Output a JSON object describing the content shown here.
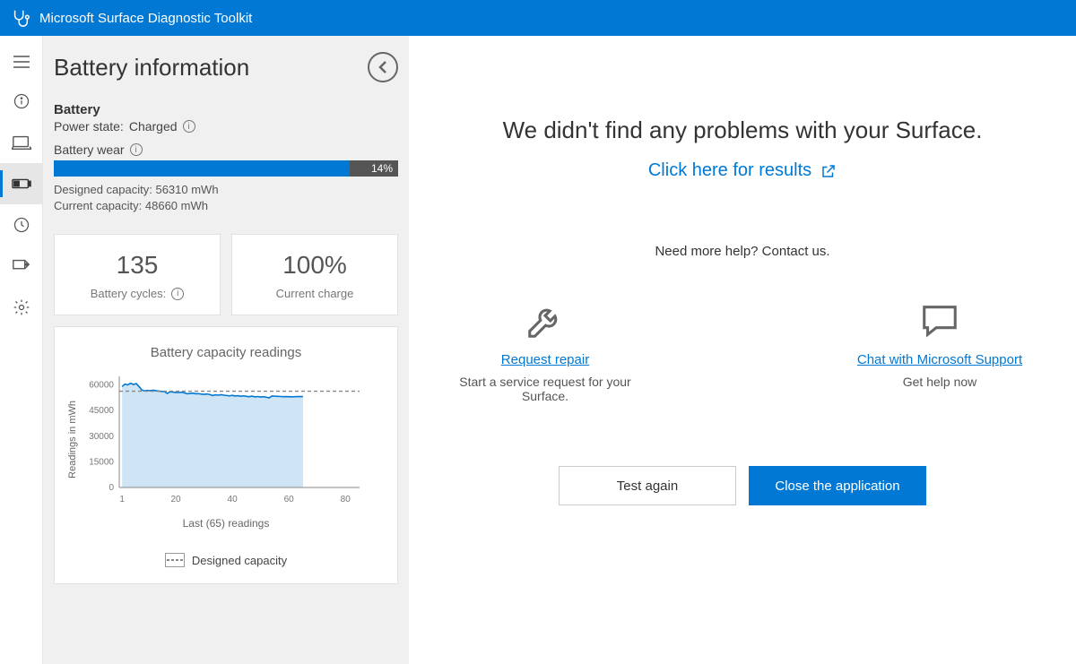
{
  "app_title": "Microsoft Surface Diagnostic Toolkit",
  "page_title": "Battery information",
  "battery": {
    "section_title": "Battery",
    "power_state_label": "Power state:",
    "power_state_value": "Charged",
    "wear_label": "Battery wear",
    "wear_percent": 14,
    "wear_percent_text": "14%",
    "designed_capacity_label": "Designed capacity:",
    "designed_capacity_value": "56310  mWh",
    "current_capacity_label": "Current capacity:",
    "current_capacity_value": "48660  mWh"
  },
  "cards": {
    "cycles_value": "135",
    "cycles_label": "Battery cycles:",
    "charge_value": "100%",
    "charge_label": "Current charge"
  },
  "chart": {
    "title": "Battery capacity readings",
    "y_label": "Readings in mWh",
    "x_label": "Last (65) readings",
    "legend_label": "Designed capacity",
    "y_ticks": [
      0,
      15000,
      30000,
      45000,
      60000
    ],
    "ylim": [
      0,
      65000
    ],
    "x_ticks": [
      1,
      20,
      40,
      60,
      80
    ],
    "xlim": [
      0,
      85
    ],
    "designed_capacity": 56310,
    "readings_count": 65,
    "line_color": "#0078d4",
    "fill_color": "#cfe5f5",
    "grid_color": "#dddddd",
    "dash_color": "#888888",
    "background_color": "#ffffff",
    "title_fontsize": 15,
    "tick_fontsize": 10,
    "data": [
      59000,
      60500,
      60000,
      61000,
      60200,
      60800,
      59000,
      57000,
      56500,
      56800,
      56600,
      56900,
      56600,
      56400,
      56200,
      56100,
      55000,
      56000,
      55800,
      55600,
      55500,
      55700,
      55400,
      54800,
      55000,
      55200,
      54800,
      54900,
      54600,
      54500,
      54700,
      54400,
      53800,
      54200,
      54000,
      54300,
      54000,
      53800,
      53600,
      53900,
      53500,
      53700,
      53400,
      53600,
      53300,
      53100,
      53400,
      53000,
      53200,
      52900,
      53100,
      52800,
      52400,
      53500,
      53400,
      53300,
      53200,
      53100,
      53150,
      53100,
      53050,
      53100,
      53200,
      53150,
      53200
    ]
  },
  "results": {
    "heading": "We didn't find any problems with your Surface.",
    "link_text": "Click here for results",
    "contact_text": "Need more help? Contact us.",
    "repair_link": "Request repair",
    "repair_desc": "Start a service request for your Surface.",
    "chat_link": "Chat with Microsoft Support",
    "chat_desc": "Get help now",
    "test_again_label": "Test again",
    "close_label": "Close the application"
  },
  "colors": {
    "accent": "#0078d4",
    "sidebar_active_bg": "#e6e6e6",
    "left_panel_bg": "#f0f0f0",
    "progress_bg": "#555555"
  }
}
